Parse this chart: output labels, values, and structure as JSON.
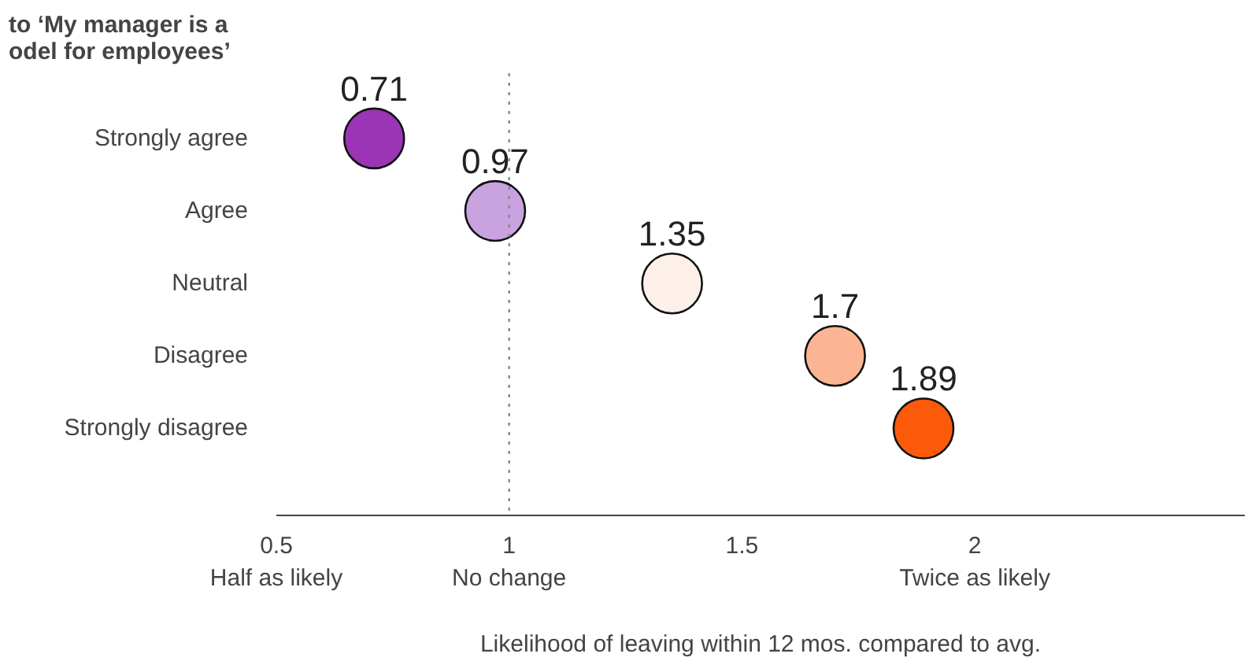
{
  "chart_data": {
    "type": "scatter",
    "orientation": "horizontal",
    "title": "to ‘My manager is a\nodel for employees’",
    "xlabel": "Likelihood of leaving within 12 mos. compared to avg.",
    "categories": [
      "Strongly agree",
      "Agree",
      "Neutral",
      "Disagree",
      "Strongly disagree"
    ],
    "values": [
      0.71,
      0.97,
      1.35,
      1.7,
      1.89
    ],
    "colors": [
      "#9b35b5",
      "#c9a3e0",
      "#fdf0e8",
      "#fbb593",
      "#fc5a0a"
    ],
    "data_labels": true,
    "marker": "circle",
    "grid": false,
    "xlim": [
      0.5,
      2.58
    ],
    "xticks": [
      {
        "value": 0.5,
        "label": "0.5\nHalf as likely"
      },
      {
        "value": 1,
        "label": "1\nNo change"
      },
      1.5,
      {
        "value": 2,
        "label": "2\nTwice as likely"
      }
    ],
    "ref_lines": [
      {
        "axis": "x",
        "value": 1,
        "label": null,
        "color": "#888888",
        "line_style": "dotted"
      }
    ]
  }
}
